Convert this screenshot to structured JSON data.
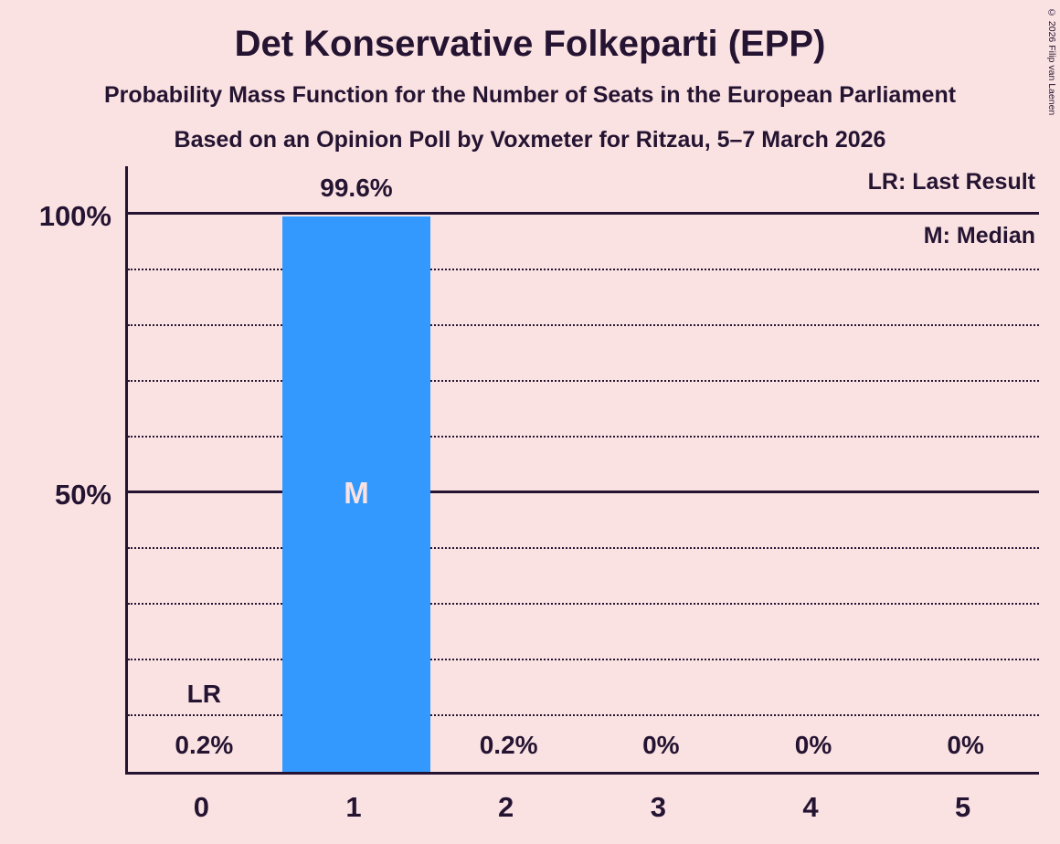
{
  "title": "Det Konservative Folkeparti (EPP)",
  "subtitles": [
    "Probability Mass Function for the Number of Seats in the European Parliament",
    "Based on an Opinion Poll by Voxmeter for Ritzau, 5–7 March 2026"
  ],
  "copyright": "© 2026 Filip van Laenen",
  "legend": {
    "last_result": "LR: Last Result",
    "median": "M: Median"
  },
  "colors": {
    "background": "#fbe2e2",
    "bar": "#3399fe",
    "text": "#241432"
  },
  "chart_data": {
    "type": "bar",
    "title": "Det Konservative Folkeparti (EPP)",
    "categories": [
      "0",
      "1",
      "2",
      "3",
      "4",
      "5"
    ],
    "values": [
      0.2,
      99.6,
      0.2,
      0,
      0,
      0
    ],
    "value_labels": [
      "0.2%",
      "99.6%",
      "0.2%",
      "0%",
      "0%",
      "0%"
    ],
    "y_ticks": [
      "100%",
      "50%"
    ],
    "ylim": [
      0,
      109
    ],
    "gridlines_pct": [
      10,
      20,
      30,
      40,
      50,
      60,
      70,
      80,
      90,
      100
    ],
    "solid_gridlines_pct": [
      50,
      100
    ],
    "median_index": 1,
    "last_result_index": 0,
    "markers": {
      "median": "M",
      "last_result": "LR"
    },
    "legend_position": "top-right",
    "grid": true
  }
}
